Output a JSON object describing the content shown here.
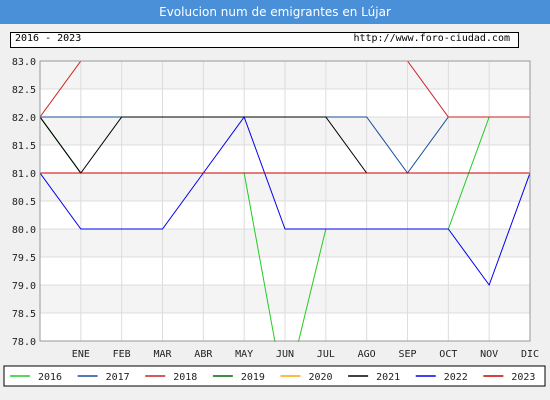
{
  "header": {
    "title": "Evolucion num de emigrantes en Lújar",
    "period": "2016 - 2023",
    "url": "http://www.foro-ciudad.com"
  },
  "chart_data": {
    "type": "line",
    "title": "Evolucion num de emigrantes en Lújar",
    "xlabel": "",
    "ylabel": "",
    "categories": [
      "",
      "ENE",
      "FEB",
      "MAR",
      "ABR",
      "MAY",
      "JUN",
      "JUL",
      "AGO",
      "SEP",
      "OCT",
      "NOV",
      "DIC"
    ],
    "ylim": [
      78.0,
      83.0
    ],
    "yticks": [
      78.0,
      78.5,
      79.0,
      79.5,
      80.0,
      80.5,
      81.0,
      81.5,
      82.0,
      82.5,
      83.0
    ],
    "ytick_labels": [
      "78.0",
      "78.5",
      "79.0",
      "79.5",
      "80.0",
      "80.5",
      "81.0",
      "81.5",
      "82.0",
      "82.5",
      "83.0"
    ],
    "grid": true,
    "legend_position": "bottom",
    "series": [
      {
        "name": "2016",
        "color": "#22cc22",
        "values": [
          82,
          81,
          81,
          81,
          81,
          81,
          77,
          80,
          80,
          80,
          80,
          82,
          82
        ]
      },
      {
        "name": "2017",
        "color": "#1a4f9c",
        "values": [
          82,
          82,
          82,
          82,
          82,
          82,
          82,
          82,
          82,
          81,
          82,
          82,
          82
        ]
      },
      {
        "name": "2018",
        "color": "#cc2222",
        "values": [
          82,
          83,
          83,
          83,
          83,
          83,
          83,
          83,
          83,
          83,
          82,
          82,
          82
        ]
      },
      {
        "name": "2019",
        "color": "#006600",
        "values": [
          82,
          81,
          81,
          81,
          81,
          81,
          81,
          81,
          81,
          81,
          81,
          81,
          81
        ]
      },
      {
        "name": "2020",
        "color": "#ffa500",
        "values": [
          81,
          81,
          81,
          81,
          81,
          81,
          81,
          81,
          81,
          81,
          81,
          81,
          81
        ]
      },
      {
        "name": "2021",
        "color": "#000000",
        "values": [
          82,
          81,
          82,
          82,
          82,
          82,
          82,
          82,
          81,
          81,
          81,
          81,
          81
        ]
      },
      {
        "name": "2022",
        "color": "#0000ee",
        "values": [
          81,
          80,
          80,
          80,
          81,
          82,
          80,
          80,
          80,
          80,
          80,
          79,
          81
        ]
      },
      {
        "name": "2023",
        "color": "#cc0000",
        "values": [
          81,
          81,
          81,
          81,
          81,
          81,
          81,
          81,
          81,
          81,
          81,
          81,
          81
        ]
      }
    ]
  }
}
